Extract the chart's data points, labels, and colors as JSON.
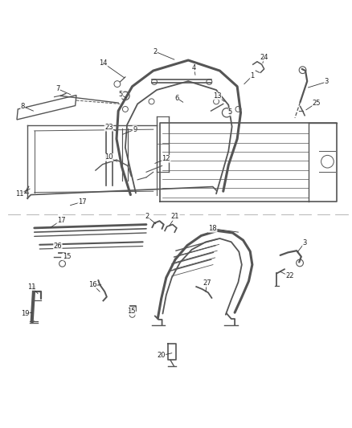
{
  "background_color": "#ffffff",
  "line_color": "#555555",
  "text_color": "#222222",
  "figsize": [
    4.38,
    5.33
  ],
  "dpi": 100,
  "annotation_line_color": "#333333",
  "annotation_lw": 0.6
}
